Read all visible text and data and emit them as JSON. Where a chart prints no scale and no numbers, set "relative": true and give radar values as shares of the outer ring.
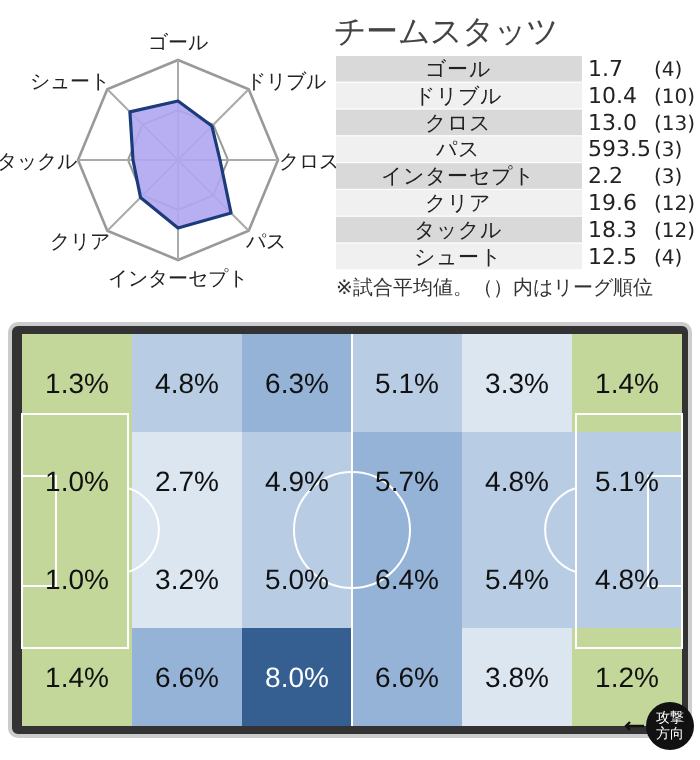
{
  "chart_data": [
    {
      "type": "radar",
      "relative": true,
      "grid": true,
      "categories": [
        "ゴール",
        "ドリブル",
        "クロス",
        "パス",
        "インターセプト",
        "クリア",
        "タックル",
        "シュート"
      ],
      "series": [
        {
          "color": "#b0a6f2",
          "values": [
            0.59,
            0.48,
            0.42,
            0.75,
            0.68,
            0.53,
            0.45,
            0.68
          ]
        }
      ]
    },
    {
      "type": "other",
      "title": "チームスタッツ",
      "categories": [
        "ゴール",
        "ドリブル",
        "クロス",
        "パス",
        "インターセプト",
        "クリア",
        "タックル",
        "シュート"
      ],
      "series": [
        {
          "values": [
            1.7,
            10.4,
            13.0,
            593.5,
            2.2,
            19.6,
            18.3,
            12.5
          ],
          "value_labels": [
            "1.7",
            "10.4",
            "13.0",
            "593.5",
            "2.2",
            "19.6",
            "18.3",
            "12.5"
          ]
        },
        {
          "values": [
            4,
            10,
            13,
            3,
            3,
            12,
            12,
            4
          ],
          "value_labels": [
            "(4)",
            "(10)",
            "(13)",
            "(3)",
            "(3)",
            "(12)",
            "(12)",
            "(4)"
          ]
        }
      ],
      "annotations": [
        "※試合平均値。（）内はリーグ順位"
      ]
    },
    {
      "type": "heatmap",
      "categories": [
        null,
        null,
        null,
        null,
        null,
        null
      ],
      "y_categories": [
        null,
        null,
        null,
        null
      ],
      "cells": [
        [
          1.3,
          4.8,
          6.3,
          5.1,
          3.3,
          1.4
        ],
        [
          1.0,
          2.7,
          4.9,
          5.7,
          4.8,
          5.1
        ],
        [
          1.0,
          3.2,
          5.0,
          6.4,
          5.4,
          4.8
        ],
        [
          1.4,
          6.6,
          8.0,
          6.6,
          3.8,
          1.2
        ]
      ],
      "cell_labels": [
        [
          "1.3%",
          "4.8%",
          "6.3%",
          "5.1%",
          "3.3%",
          "1.4%"
        ],
        [
          "1.0%",
          "2.7%",
          "4.9%",
          "5.7%",
          "4.8%",
          "5.1%"
        ],
        [
          "1.0%",
          "3.2%",
          "5.0%",
          "6.4%",
          "5.4%",
          "4.8%"
        ],
        [
          "1.4%",
          "6.6%",
          "8.0%",
          "6.6%",
          "3.8%",
          "1.2%"
        ]
      ],
      "colors": [
        [
          "#c4d79b",
          "#b8cce4",
          "#95b3d7",
          "#b8cce4",
          "#dce6f1",
          "#c4d79b"
        ],
        [
          "#c4d79b",
          "#dce6f1",
          "#b8cce4",
          "#95b3d7",
          "#b8cce4",
          "#b8cce4"
        ],
        [
          "#c4d79b",
          "#dce6f1",
          "#b8cce4",
          "#95b3d7",
          "#b8cce4",
          "#b8cce4"
        ],
        [
          "#c4d79b",
          "#95b3d7",
          "#365f91",
          "#95b3d7",
          "#dce6f1",
          "#c4d79b"
        ]
      ],
      "annotations": [
        "攻撃方向"
      ]
    }
  ]
}
